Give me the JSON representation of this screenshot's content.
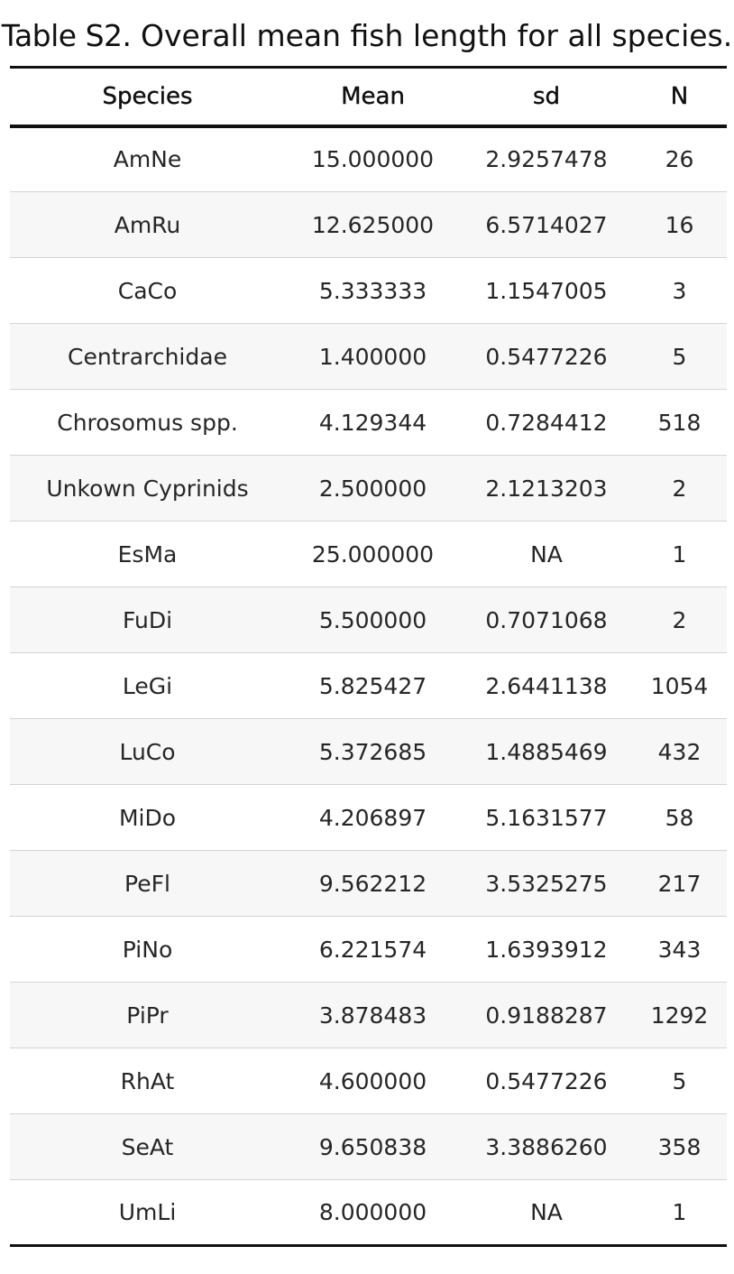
{
  "caption": {
    "label": "Table S2.",
    "text": "Overall mean fish length for all species."
  },
  "table": {
    "columns": [
      "Species",
      "Mean",
      "sd",
      "N"
    ],
    "rows": [
      [
        "AmNe",
        "15.000000",
        "2.9257478",
        "26"
      ],
      [
        "AmRu",
        "12.625000",
        "6.5714027",
        "16"
      ],
      [
        "CaCo",
        "5.333333",
        "1.1547005",
        "3"
      ],
      [
        "Centrarchidae",
        "1.400000",
        "0.5477226",
        "5"
      ],
      [
        "Chrosomus spp.",
        "4.129344",
        "0.7284412",
        "518"
      ],
      [
        "Unkown Cyprinids",
        "2.500000",
        "2.1213203",
        "2"
      ],
      [
        "EsMa",
        "25.000000",
        "NA",
        "1"
      ],
      [
        "FuDi",
        "5.500000",
        "0.7071068",
        "2"
      ],
      [
        "LeGi",
        "5.825427",
        "2.6441138",
        "1054"
      ],
      [
        "LuCo",
        "5.372685",
        "1.4885469",
        "432"
      ],
      [
        "MiDo",
        "4.206897",
        "5.1631577",
        "58"
      ],
      [
        "PeFl",
        "9.562212",
        "3.5325275",
        "217"
      ],
      [
        "PiNo",
        "6.221574",
        "1.6393912",
        "343"
      ],
      [
        "PiPr",
        "3.878483",
        "0.9188287",
        "1292"
      ],
      [
        "RhAt",
        "4.600000",
        "0.5477226",
        "5"
      ],
      [
        "SeAt",
        "9.650838",
        "3.3886260",
        "358"
      ],
      [
        "UmLi",
        "8.000000",
        "NA",
        "1"
      ]
    ]
  }
}
